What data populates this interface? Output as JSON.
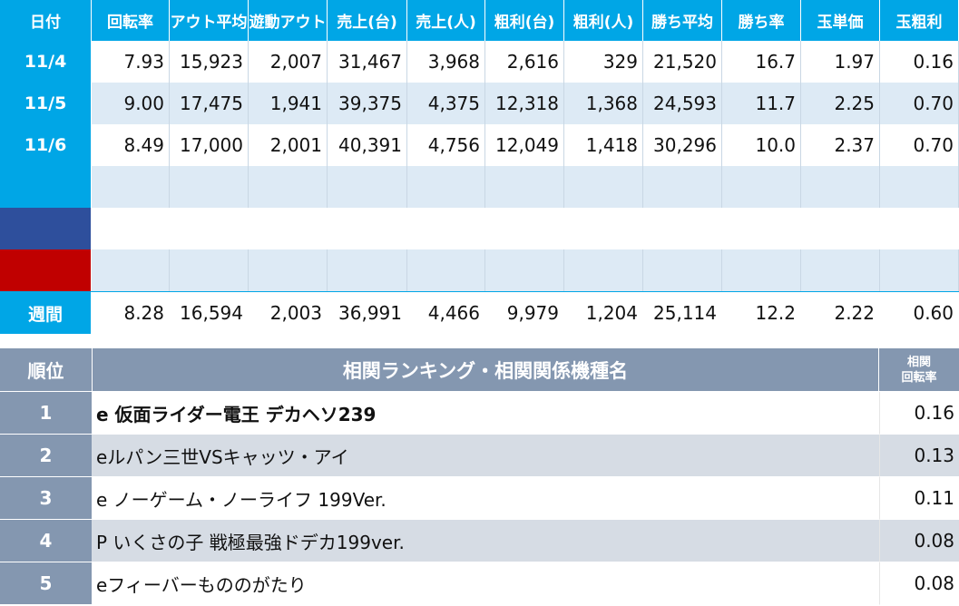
{
  "top_table": {
    "headers": [
      "日付",
      "回転率",
      "アウト平均",
      "遊動アウト",
      "売上(台)",
      "売上(人)",
      "粗利(台)",
      "粗利(人)",
      "勝ち平均",
      "勝ち率",
      "玉単価",
      "玉粗利"
    ],
    "rows": [
      {
        "date": "11/4",
        "values": [
          "7.93",
          "15,923",
          "2,007",
          "31,467",
          "3,968",
          "2,616",
          "329",
          "21,520",
          "16.7",
          "1.97",
          "0.16"
        ]
      },
      {
        "date": "11/5",
        "values": [
          "9.00",
          "17,475",
          "1,941",
          "39,375",
          "4,375",
          "12,318",
          "1,368",
          "24,593",
          "11.7",
          "2.25",
          "0.70"
        ]
      },
      {
        "date": "11/6",
        "values": [
          "8.49",
          "17,000",
          "2,001",
          "40,391",
          "4,756",
          "12,049",
          "1,418",
          "30,296",
          "10.0",
          "2.37",
          "0.70"
        ]
      }
    ],
    "weekly": {
      "label": "週間",
      "values": [
        "8.28",
        "16,594",
        "2,003",
        "36,991",
        "4,466",
        "9,979",
        "1,204",
        "25,114",
        "12.2",
        "2.22",
        "0.60"
      ]
    }
  },
  "ranking": {
    "header_rank": "順位",
    "header_title": "相関ランキング・相関関係機種名",
    "header_value_line1": "相関",
    "header_value_line2": "回転率",
    "items": [
      {
        "rank": "1",
        "name": "e 仮面ライダー電王 デカヘソ239",
        "value": "0.16"
      },
      {
        "rank": "2",
        "name": "eルパン三世VSキャッツ・アイ",
        "value": "0.13"
      },
      {
        "rank": "3",
        "name": "e ノーゲーム・ノーライフ 199Ver.",
        "value": "0.11"
      },
      {
        "rank": "4",
        "name": "P いくさの子 戦極最強ドデカ199ver.",
        "value": "0.08"
      },
      {
        "rank": "5",
        "name": "eフィーバーもののがたり",
        "value": "0.08"
      }
    ]
  },
  "colors": {
    "header_blue": "#00a6e6",
    "navy": "#2e4f9c",
    "red": "#c00000",
    "rank_header": "#8497b0",
    "light_row": "#ddeaf5",
    "rank_even": "#d6dce4"
  }
}
